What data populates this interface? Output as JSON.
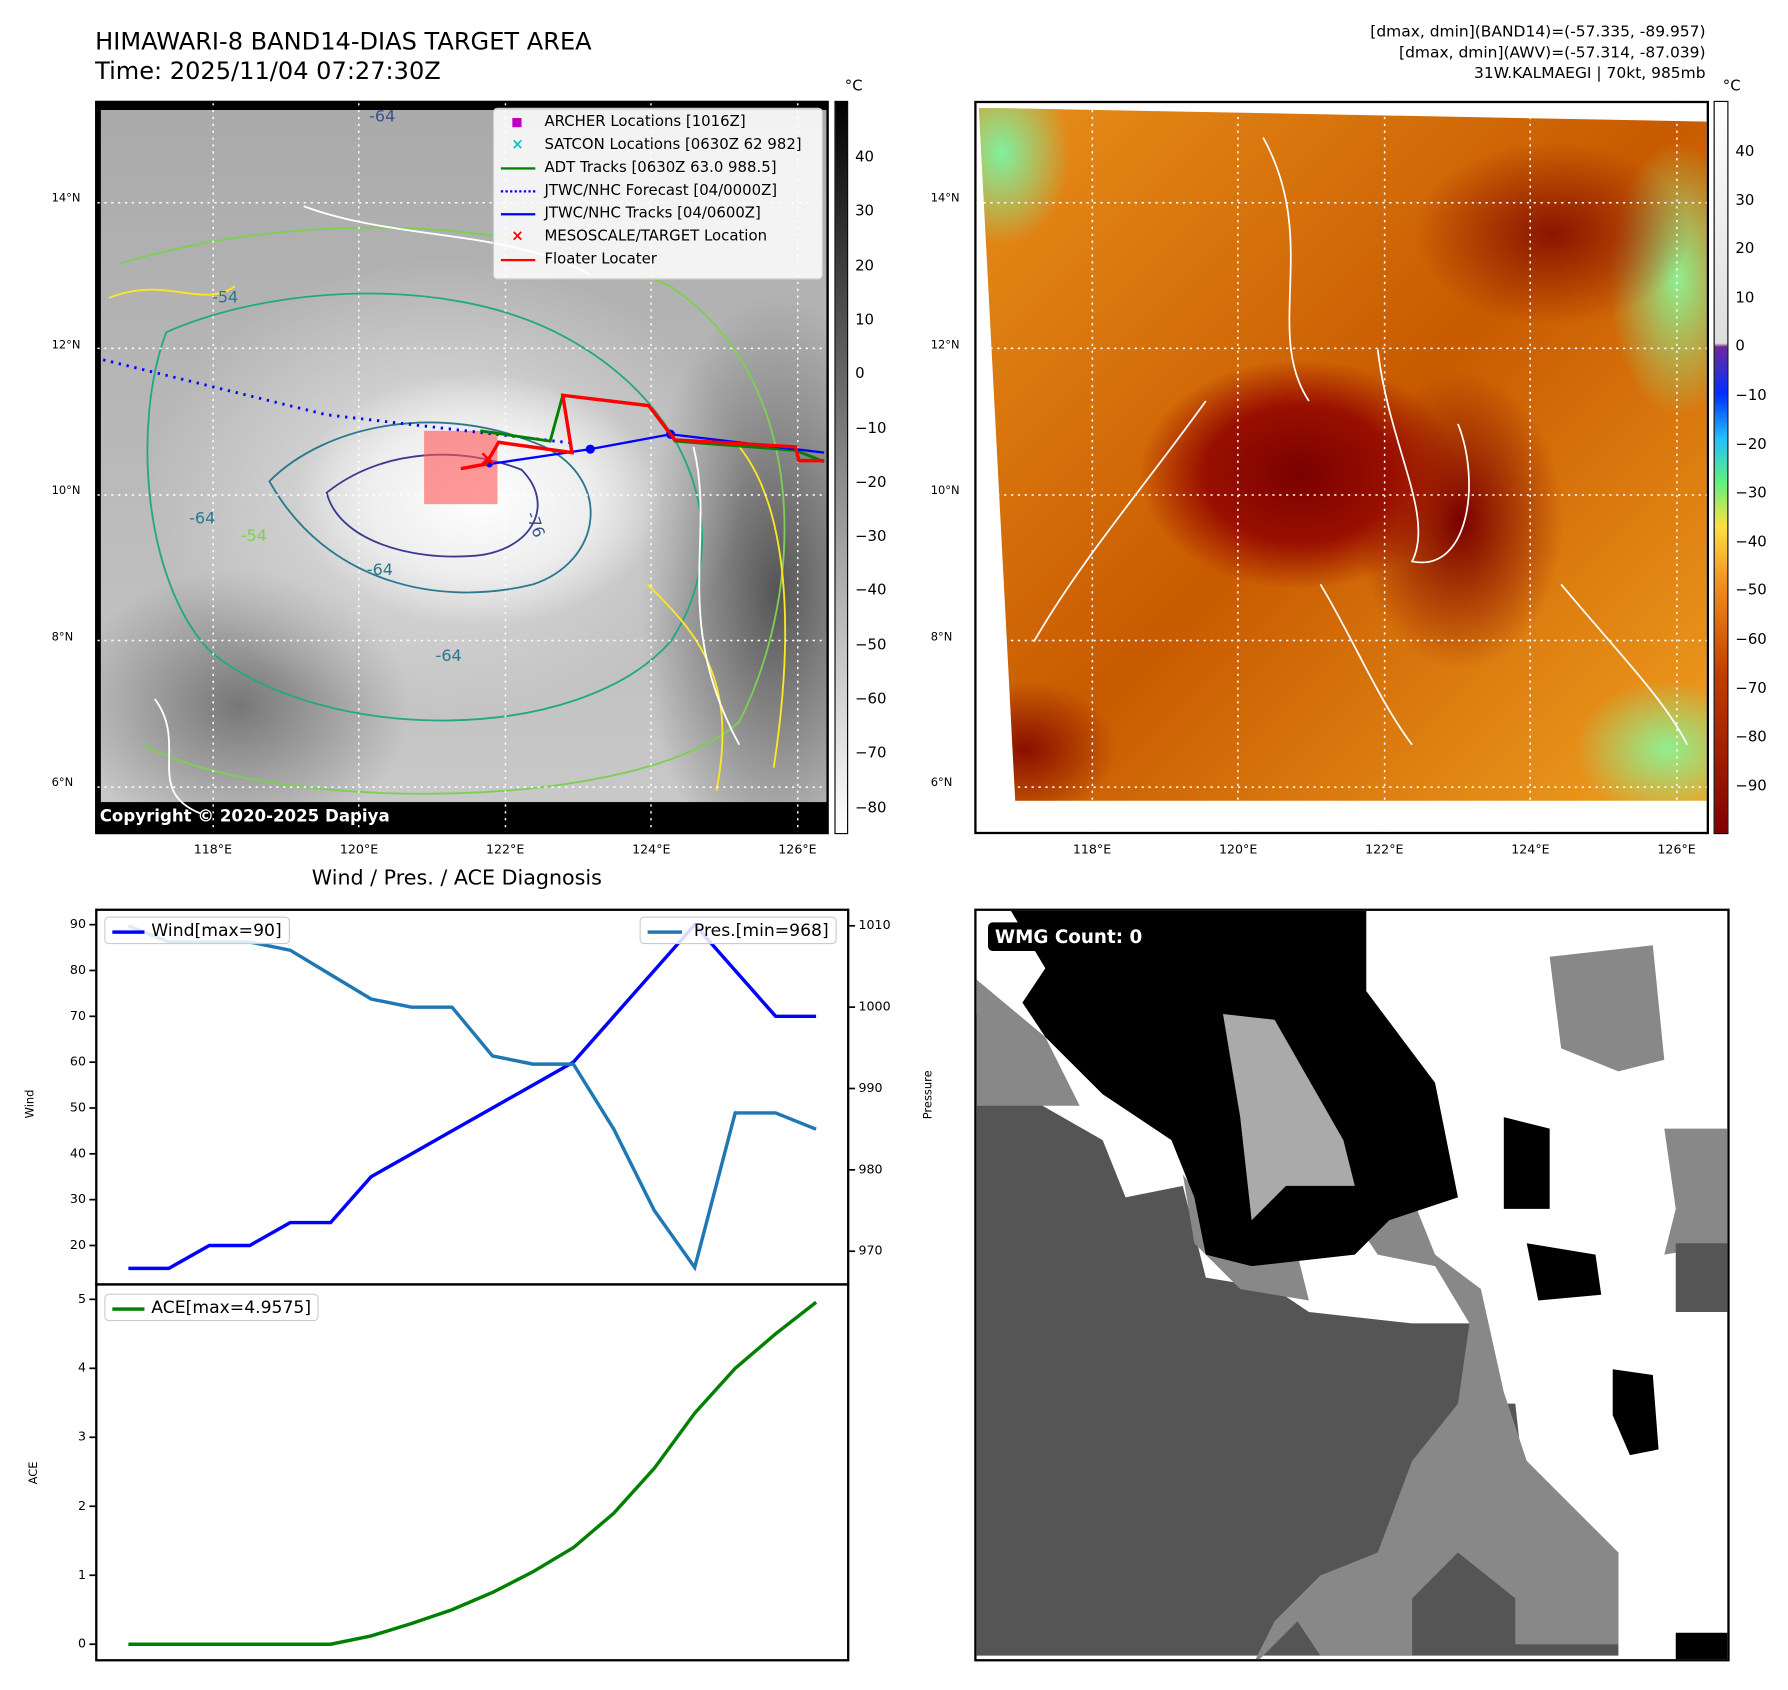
{
  "header": {
    "title": "HIMAWARI-8 BAND14-DIAS TARGET AREA",
    "time": "Time: 2025/11/04 07:27:30Z",
    "stats": [
      "[dmax, dmin](BAND14)=(-57.335, -89.957)",
      "[dmax, dmin](AWV)=(-57.314, -87.039)",
      "31W.KALMAEGI | 70kt, 985mb"
    ]
  },
  "maps": {
    "lat_labels": [
      "14°N",
      "12°N",
      "10°N",
      "8°N",
      "6°N"
    ],
    "lon_labels": [
      "118°E",
      "120°E",
      "122°E",
      "124°E",
      "126°E"
    ],
    "unit": "°C",
    "cbar_left": [
      "40",
      "30",
      "20",
      "10",
      "0",
      "−10",
      "−20",
      "−30",
      "−40",
      "−50",
      "−60",
      "−70",
      "−80"
    ],
    "cbar_right": [
      "40",
      "30",
      "20",
      "10",
      "0",
      "−10",
      "−20",
      "−30",
      "−40",
      "−50",
      "−60",
      "−70",
      "−80",
      "−90"
    ],
    "contour_labels": [
      "-64",
      "-54",
      "-64",
      "-64",
      "-76",
      "-64",
      "-54"
    ],
    "copyright": "Copyright © 2020-2025 Dapiya",
    "legend": [
      {
        "label": "ARCHER Locations [1016Z]",
        "color": "#c000c0",
        "marker": "square"
      },
      {
        "label": "SATCON Locations [0630Z 62 982]",
        "color": "#17bec8",
        "marker": "x"
      },
      {
        "label": "ADT Tracks [0630Z 63.0 988.5]",
        "color": "#008000",
        "marker": "line"
      },
      {
        "label": "JTWC/NHC Forecast [04/0000Z]",
        "color": "#0000ff",
        "marker": "dotted"
      },
      {
        "label": "JTWC/NHC Tracks [04/0600Z]",
        "color": "#0000ff",
        "marker": "line-dot"
      },
      {
        "label": "MESOSCALE/TARGET Location",
        "color": "#ff0000",
        "marker": "x"
      },
      {
        "label": "Floater Locater",
        "color": "#ff0000",
        "marker": "line"
      }
    ]
  },
  "wmg": {
    "label": "WMG Count: 0"
  },
  "chart_data": [
    {
      "type": "line",
      "title": "Wind / Pres. / ACE Diagnosis",
      "ylabel": "Wind",
      "y2label": "Pressure",
      "ylim": [
        13,
        93
      ],
      "y2lim": [
        966,
        1011
      ],
      "yticks": [
        "20",
        "30",
        "40",
        "50",
        "60",
        "70",
        "80",
        "90"
      ],
      "y2ticks": [
        "970",
        "980",
        "990",
        "1000",
        "1010"
      ],
      "series": [
        {
          "name": "Wind[max=90]",
          "color": "#0000ff",
          "axis": "left",
          "values": [
            15,
            15,
            20,
            20,
            25,
            25,
            35,
            40,
            45,
            50,
            55,
            60,
            70,
            80,
            90,
            80,
            70,
            70
          ]
        },
        {
          "name": "Pres.[min=968]",
          "color": "#1f77b4",
          "axis": "right",
          "values": [
            1010,
            1008,
            1008,
            1008,
            1007,
            1004,
            1001,
            1000,
            1000,
            994,
            993,
            993,
            985,
            975,
            968,
            987,
            987,
            985
          ]
        }
      ]
    },
    {
      "type": "line",
      "ylabel": "ACE",
      "ylim": [
        -0.13,
        5.2
      ],
      "yticks": [
        "0",
        "1",
        "2",
        "3",
        "4",
        "5"
      ],
      "series": [
        {
          "name": "ACE[max=4.9575]",
          "color": "#008000",
          "values": [
            0,
            0,
            0,
            0,
            0,
            0,
            0.12,
            0.3,
            0.5,
            0.75,
            1.05,
            1.4,
            1.9,
            2.55,
            3.35,
            4.0,
            4.5,
            4.9575
          ]
        }
      ]
    }
  ]
}
